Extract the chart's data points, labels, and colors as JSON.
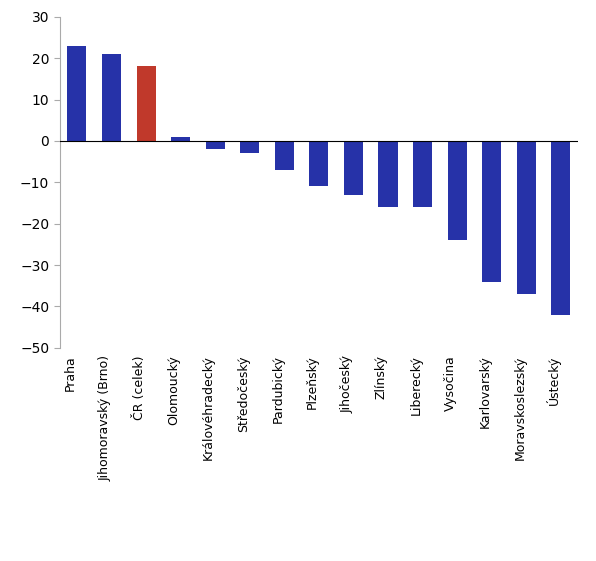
{
  "categories": [
    "Praha",
    "Jihomoravský (Brno)",
    "ČR (celek)",
    "Olomoucký",
    "Královéhradecký",
    "Středočeský",
    "Pardubický",
    "Plzeňský",
    "Jihočeský",
    "Zlínský",
    "Liberecký",
    "Vysočina",
    "Karlovarský",
    "Moravskoslezský",
    "Ústecký"
  ],
  "values": [
    23,
    21,
    18,
    1,
    -2,
    -3,
    -7,
    -11,
    -13,
    -16,
    -16,
    -24,
    -34,
    -37,
    -42
  ],
  "bar_colors": [
    "#2632a8",
    "#2632a8",
    "#c0392b",
    "#2632a8",
    "#2632a8",
    "#2632a8",
    "#2632a8",
    "#2632a8",
    "#2632a8",
    "#2632a8",
    "#2632a8",
    "#2632a8",
    "#2632a8",
    "#2632a8",
    "#2632a8"
  ],
  "ylim": [
    -50,
    30
  ],
  "yticks": [
    -50,
    -40,
    -30,
    -20,
    -10,
    0,
    10,
    20,
    30
  ],
  "bgcolor": "#ffffff",
  "bar_width": 0.55,
  "tick_fontsize": 10,
  "label_fontsize": 9,
  "label_rotation": 90,
  "figsize": [
    5.96,
    5.61
  ],
  "dpi": 100
}
